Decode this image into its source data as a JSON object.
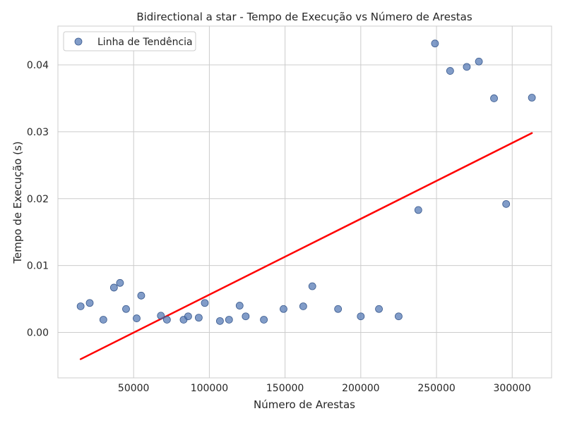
{
  "chart_data": {
    "type": "scatter",
    "title": "Bidirectional a star - Tempo de Execução vs Número de Arestas",
    "xlabel": "Número de Arestas",
    "ylabel": "Tempo de Execução (s)",
    "xlim": [
      0,
      326000
    ],
    "ylim": [
      -0.0068,
      0.0458
    ],
    "xticks": [
      50000,
      100000,
      150000,
      200000,
      250000,
      300000
    ],
    "xtick_labels": [
      "50000",
      "100000",
      "150000",
      "200000",
      "250000",
      "300000"
    ],
    "yticks": [
      0.0,
      0.01,
      0.02,
      0.03,
      0.04
    ],
    "ytick_labels": [
      "0.00",
      "0.01",
      "0.02",
      "0.03",
      "0.04"
    ],
    "grid": true,
    "legend": {
      "position": "top-left",
      "entries": [
        "Linha de Tendência"
      ]
    },
    "series": [
      {
        "name": "Linha de Tendência",
        "kind": "scatter",
        "color": "#4c72b0",
        "points": [
          [
            15000,
            0.0039
          ],
          [
            21000,
            0.0044
          ],
          [
            30000,
            0.0019
          ],
          [
            37000,
            0.0067
          ],
          [
            41000,
            0.0074
          ],
          [
            45000,
            0.0035
          ],
          [
            52000,
            0.0021
          ],
          [
            55000,
            0.0055
          ],
          [
            68000,
            0.0025
          ],
          [
            72000,
            0.0019
          ],
          [
            83000,
            0.0019
          ],
          [
            86000,
            0.0024
          ],
          [
            93000,
            0.0022
          ],
          [
            97000,
            0.0044
          ],
          [
            107000,
            0.0017
          ],
          [
            113000,
            0.0019
          ],
          [
            120000,
            0.004
          ],
          [
            124000,
            0.0024
          ],
          [
            136000,
            0.0019
          ],
          [
            149000,
            0.0035
          ],
          [
            162000,
            0.0039
          ],
          [
            168000,
            0.0069
          ],
          [
            185000,
            0.0035
          ],
          [
            200000,
            0.0024
          ],
          [
            212000,
            0.0035
          ],
          [
            225000,
            0.0024
          ],
          [
            238000,
            0.0183
          ],
          [
            249000,
            0.0432
          ],
          [
            259000,
            0.0391
          ],
          [
            270000,
            0.0397
          ],
          [
            278000,
            0.0405
          ],
          [
            288000,
            0.035
          ],
          [
            296000,
            0.0192
          ],
          [
            313000,
            0.0351
          ]
        ]
      },
      {
        "kind": "line",
        "color": "#ff0000",
        "points": [
          [
            15000,
            -0.004
          ],
          [
            313000,
            0.0298
          ]
        ]
      }
    ]
  }
}
